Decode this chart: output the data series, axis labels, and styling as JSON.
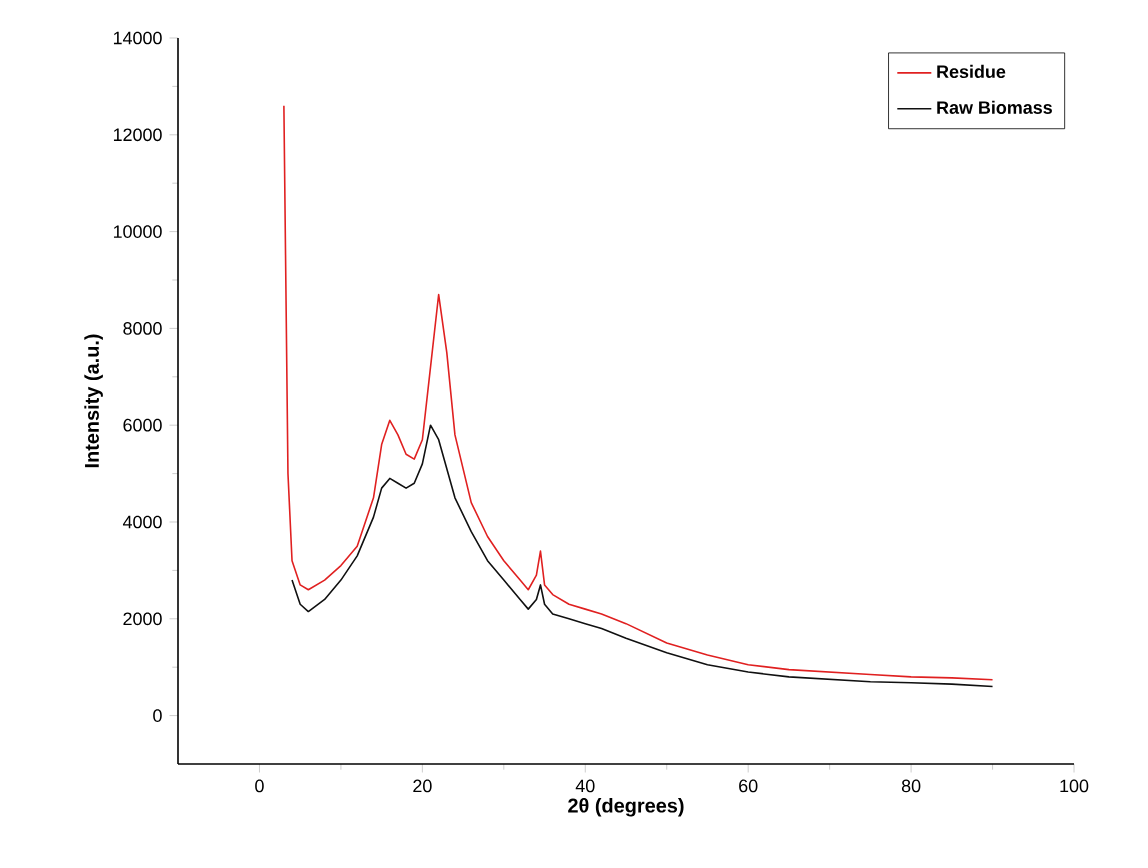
{
  "chart_data": {
    "type": "line",
    "xlabel": "2θ (degrees)",
    "ylabel": "Intensity (a.u.)",
    "xlim": [
      -10,
      100
    ],
    "ylim": [
      -1000,
      14000
    ],
    "xticks": [
      0,
      20,
      40,
      60,
      80,
      100
    ],
    "yticks": [
      0,
      2000,
      4000,
      6000,
      8000,
      10000,
      12000,
      14000
    ],
    "grid": false,
    "legend": "top right",
    "marker": "none",
    "line_style": "solid",
    "series": [
      {
        "name": "Residue",
        "color": "#e02020",
        "x": [
          3,
          3.5,
          4,
          5,
          6,
          8,
          10,
          12,
          14,
          15,
          16,
          17,
          18,
          19,
          20,
          21,
          22,
          23,
          24,
          26,
          28,
          30,
          32,
          33,
          34,
          34.5,
          35,
          36,
          38,
          40,
          42,
          45,
          50,
          55,
          60,
          65,
          70,
          75,
          80,
          85,
          90
        ],
        "values": [
          12600,
          5000,
          3200,
          2700,
          2600,
          2800,
          3100,
          3500,
          4500,
          5600,
          6100,
          5800,
          5400,
          5300,
          5700,
          7200,
          8700,
          7500,
          5800,
          4400,
          3700,
          3200,
          2800,
          2600,
          2900,
          3400,
          2700,
          2500,
          2300,
          2200,
          2100,
          1900,
          1500,
          1250,
          1050,
          950,
          900,
          850,
          800,
          780,
          740
        ]
      },
      {
        "name": "Raw Biomass",
        "color": "#101010",
        "x": [
          4,
          5,
          6,
          8,
          10,
          12,
          14,
          15,
          16,
          17,
          18,
          19,
          20,
          21,
          22,
          23,
          24,
          26,
          28,
          30,
          32,
          33,
          34,
          34.5,
          35,
          36,
          38,
          40,
          42,
          45,
          50,
          55,
          60,
          65,
          70,
          75,
          80,
          85,
          90
        ],
        "values": [
          2800,
          2300,
          2150,
          2400,
          2800,
          3300,
          4100,
          4700,
          4900,
          4800,
          4700,
          4800,
          5200,
          6000,
          5700,
          5100,
          4500,
          3800,
          3200,
          2800,
          2400,
          2200,
          2400,
          2700,
          2300,
          2100,
          2000,
          1900,
          1800,
          1600,
          1300,
          1050,
          900,
          800,
          750,
          700,
          680,
          650,
          600
        ]
      }
    ]
  }
}
